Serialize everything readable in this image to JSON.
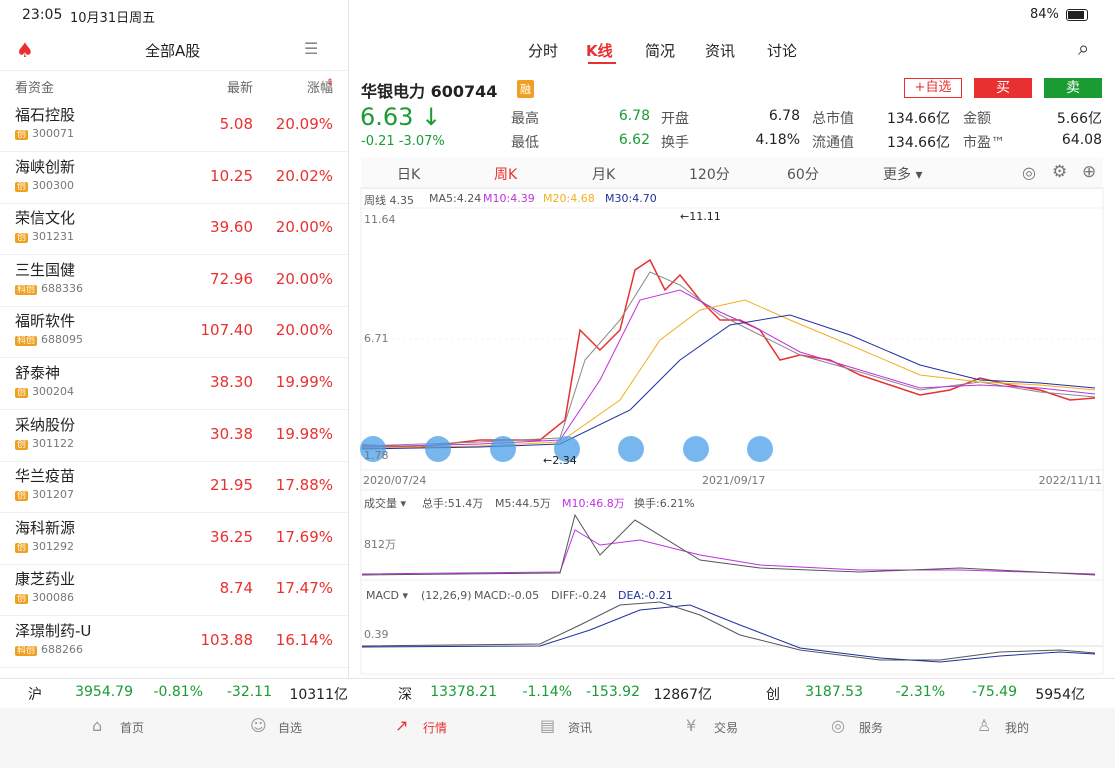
{
  "status": {
    "time": "23:05",
    "date": "10月31日周五",
    "battery": "84%"
  },
  "sidebar": {
    "title": "全部A股",
    "columns": [
      "看资金",
      "最新",
      "涨幅"
    ],
    "rows": [
      {
        "name": "福石控股",
        "tag": "创",
        "code": "300071",
        "price": "5.08",
        "change": "20.09%"
      },
      {
        "name": "海峡创新",
        "tag": "创",
        "code": "300300",
        "price": "10.25",
        "change": "20.02%"
      },
      {
        "name": "荣信文化",
        "tag": "创",
        "code": "301231",
        "price": "39.60",
        "change": "20.00%"
      },
      {
        "name": "三生国健",
        "tag": "科创",
        "code": "688336",
        "price": "72.96",
        "change": "20.00%"
      },
      {
        "name": "福昕软件",
        "tag": "科创",
        "code": "688095",
        "price": "107.40",
        "change": "20.00%"
      },
      {
        "name": "舒泰神",
        "tag": "创",
        "code": "300204",
        "price": "38.30",
        "change": "19.99%"
      },
      {
        "name": "采纳股份",
        "tag": "创",
        "code": "301122",
        "price": "30.38",
        "change": "19.98%"
      },
      {
        "name": "华兰疫苗",
        "tag": "创",
        "code": "301207",
        "price": "21.95",
        "change": "17.88%"
      },
      {
        "name": "海科新源",
        "tag": "创",
        "code": "301292",
        "price": "36.25",
        "change": "17.69%"
      },
      {
        "name": "康芝药业",
        "tag": "创",
        "code": "300086",
        "price": "8.74",
        "change": "17.47%"
      },
      {
        "name": "泽璟制药-U",
        "tag": "科创",
        "code": "688266",
        "price": "103.88",
        "change": "16.14%"
      }
    ]
  },
  "tabs": [
    "分时",
    "K线",
    "简况",
    "资讯",
    "讨论"
  ],
  "stock": {
    "name": "华银电力 600744",
    "badge": "融",
    "price": "6.63 ↓",
    "change": "-0.21  -3.07%",
    "buttons": [
      "+自选",
      "买",
      "卖"
    ],
    "stats": [
      {
        "label": "最高",
        "value": "6.78"
      },
      {
        "label": "开盘",
        "value": "6.78"
      },
      {
        "label": "总市值",
        "value": "134.66亿"
      },
      {
        "label": "金额",
        "value": "5.66亿"
      },
      {
        "label": "最低",
        "value": "6.62"
      },
      {
        "label": "换手",
        "value": "4.18%"
      },
      {
        "label": "流通值",
        "value": "134.66亿"
      },
      {
        "label": "市盈™",
        "value": "64.08"
      }
    ]
  },
  "periods": [
    "日K",
    "周K",
    "月K",
    "120分",
    "60分",
    "更多 ▾"
  ],
  "kline": {
    "legend": [
      "周线  4.35",
      "MA5:4.24",
      "M10:4.39",
      "M20:4.68",
      "M30:4.70"
    ],
    "axis": [
      "11.64",
      "6.71",
      "1.78"
    ],
    "high_note": "←11.11",
    "low_note": "←2.34",
    "dates": [
      "2020/07/24",
      "2021/09/17",
      "2022/11/11"
    ],
    "volume_legend": [
      "成交量 ▾",
      "总手:51.4万",
      "M5:44.5万",
      "M10:46.8万",
      "换手:6.21%"
    ],
    "volume_axis": "812万",
    "macd_legend": [
      "MACD ▾",
      "(12,26,9)",
      "MACD:-0.05",
      "DIFF:-0.24",
      "DEA:-0.21"
    ],
    "macd_axis": "0.39"
  },
  "indices": [
    {
      "name": "沪",
      "price": "3954.79",
      "pct": "-0.81%",
      "chg": "-32.11",
      "amount": "10311亿"
    },
    {
      "name": "深",
      "price": "13378.21",
      "pct": "-1.14%",
      "chg": "-153.92",
      "amount": "12867亿"
    },
    {
      "name": "创",
      "price": "3187.53",
      "pct": "-2.31%",
      "chg": "-75.49",
      "amount": "5954亿"
    }
  ],
  "nav": [
    "首页",
    "自选",
    "行情",
    "资讯",
    "交易",
    "服务",
    "我的"
  ]
}
